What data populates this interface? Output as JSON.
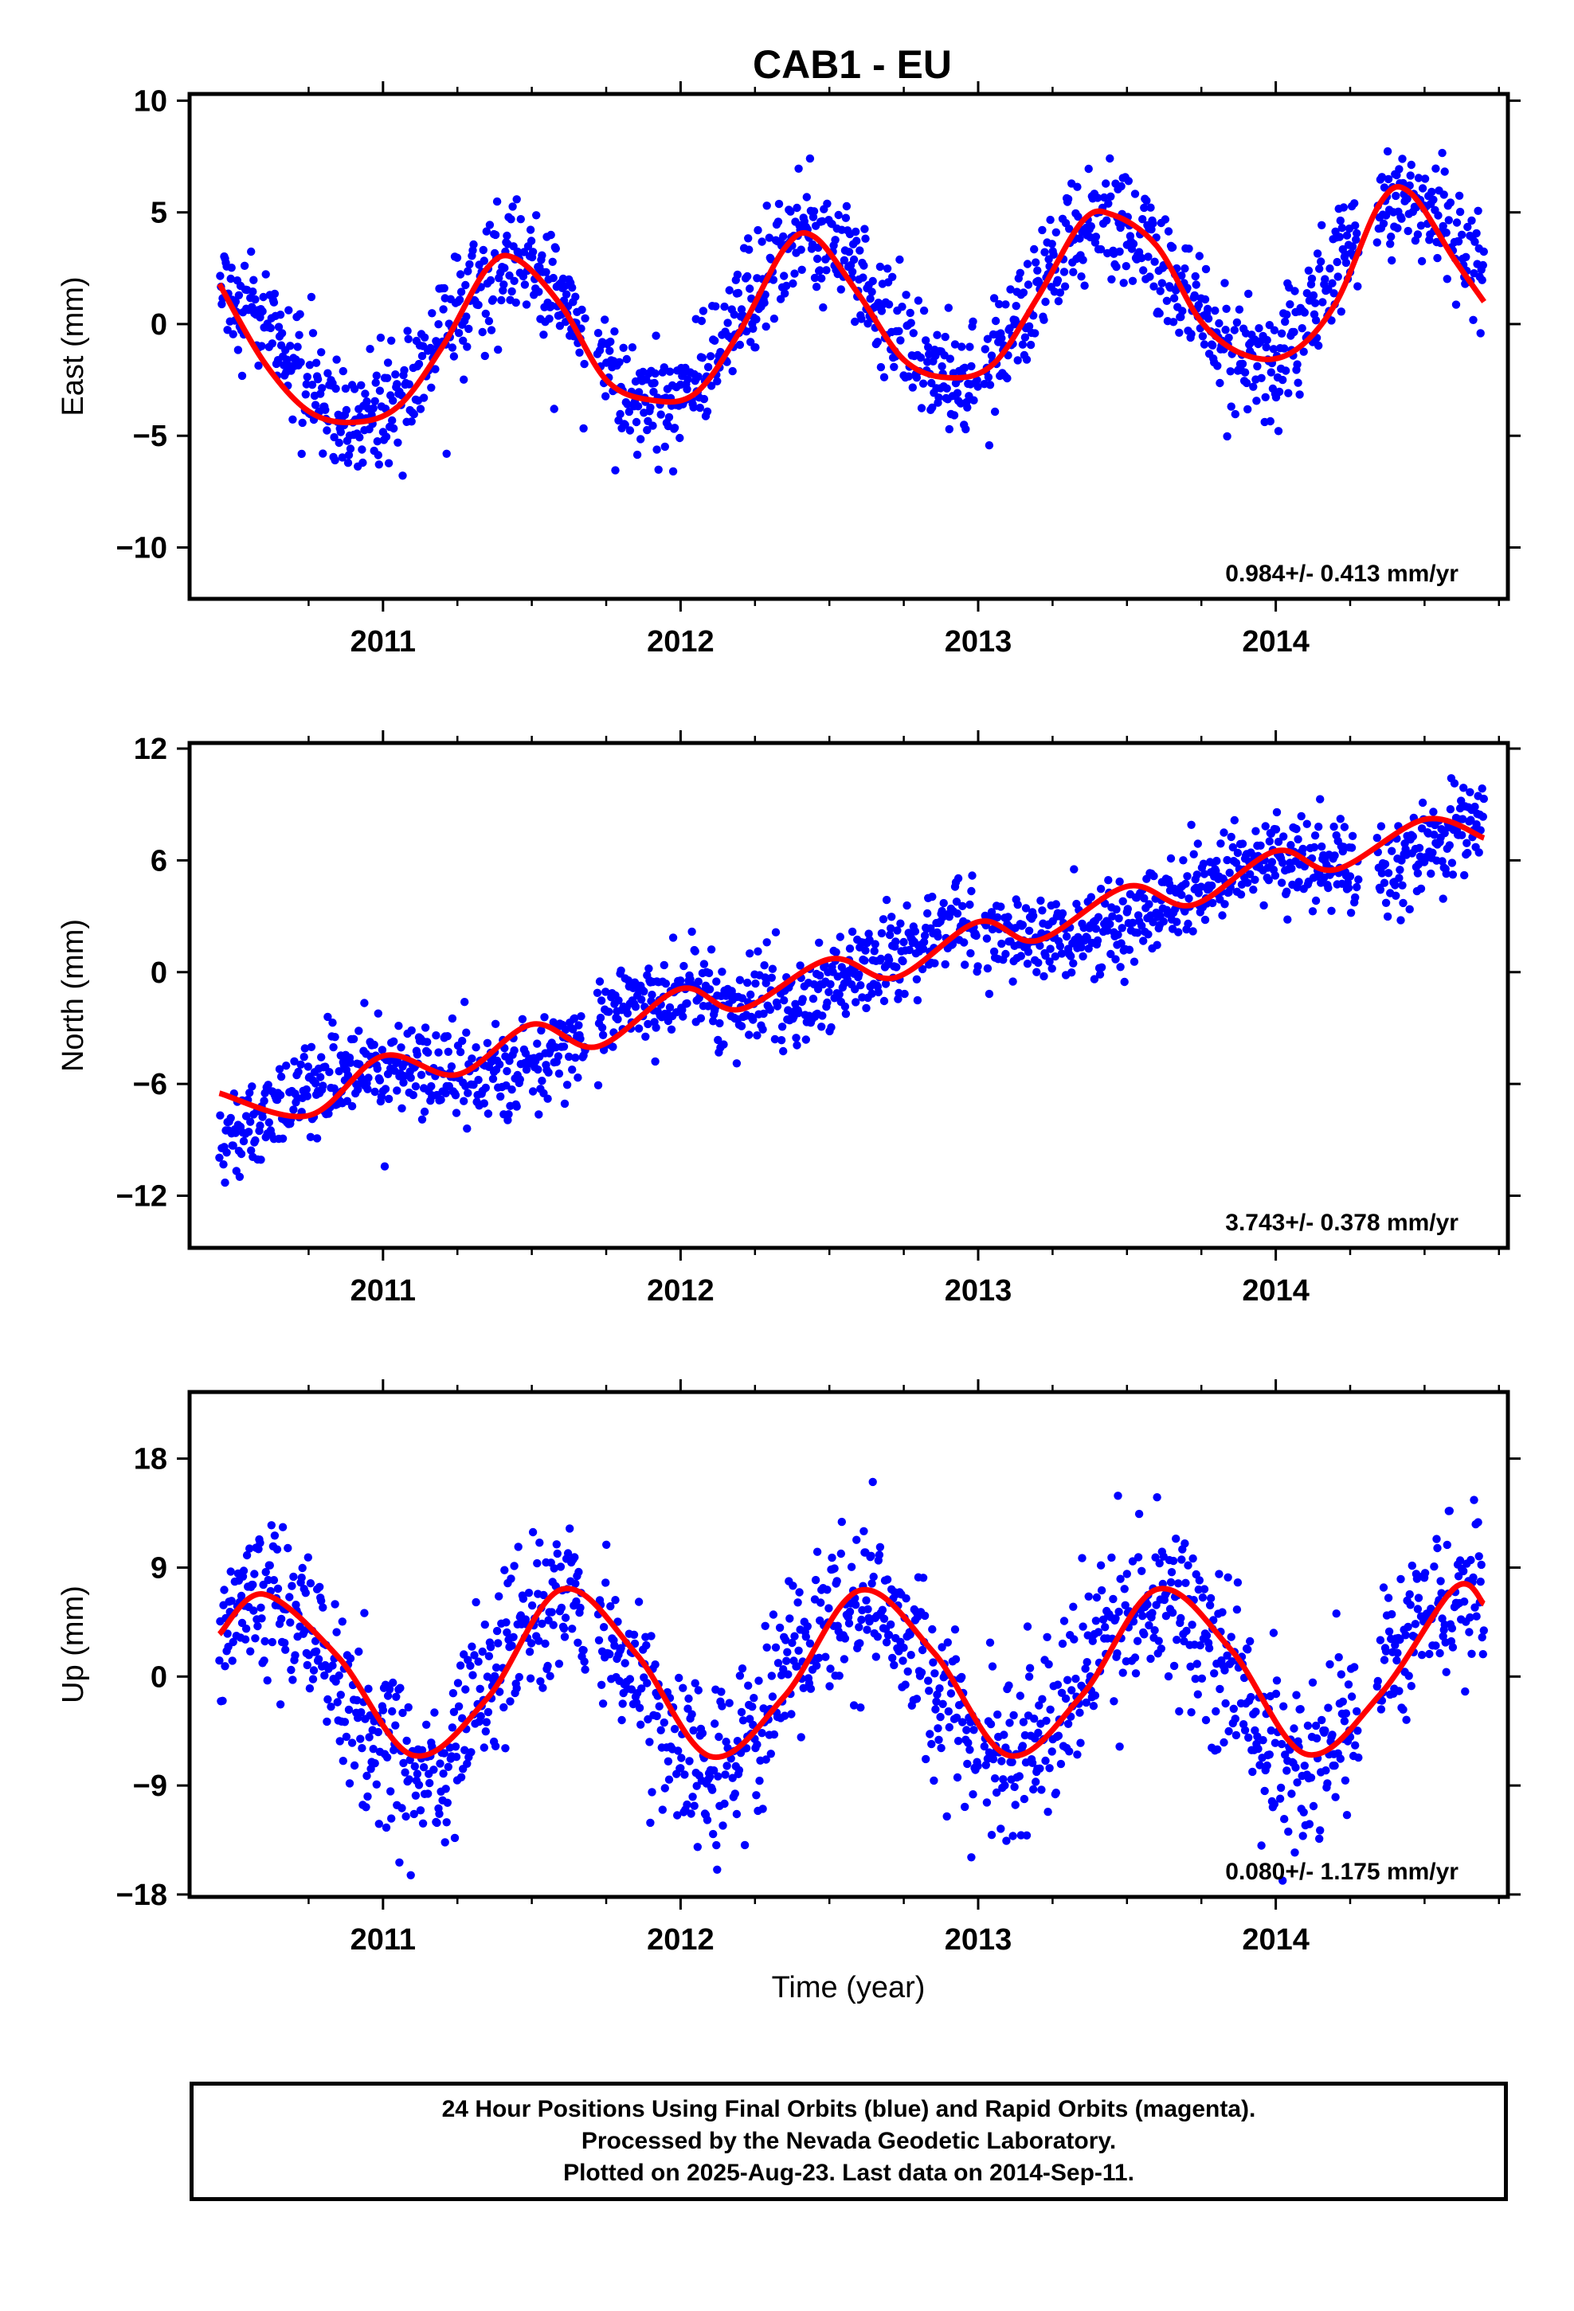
{
  "chart_data": {
    "type": "scatter",
    "title": "CAB1 - EU",
    "xlabel": "Time (year)",
    "xlim": [
      2010.35,
      2014.78
    ],
    "x_ticks": [
      "2011",
      "2012",
      "2013",
      "2014"
    ],
    "colors": {
      "points": "#0000ff",
      "fit": "#ff0000",
      "frame": "#000000"
    },
    "panels": [
      {
        "name": "east",
        "ylabel": "East (mm)",
        "ylim": [
          -12.3,
          10.3
        ],
        "y_ticks": [
          "10",
          "5",
          "0",
          "−5",
          "−10"
        ],
        "y_tick_values": [
          10,
          5,
          0,
          -5,
          -10
        ],
        "rate_label": "0.984+/- 0.413 mm/yr",
        "fit_model": {
          "t0": 2012.5,
          "offset": 0.3,
          "rate": 0.984,
          "amp": 3.4,
          "peak_phase": 0.43
        },
        "noise_sd": 1.3,
        "fit_x": [
          2010.45,
          2010.6,
          2010.75,
          2010.9,
          2011.05,
          2011.2,
          2011.35,
          2011.45,
          2011.6,
          2011.75,
          2011.9,
          2012.05,
          2012.2,
          2012.35,
          2012.45,
          2012.6,
          2012.75,
          2012.9,
          2013.05,
          2013.2,
          2013.35,
          2013.45,
          2013.6,
          2013.75,
          2013.9,
          2014.05,
          2014.2,
          2014.35,
          2014.45,
          2014.6,
          2014.7
        ],
        "fit_y": [
          1.8,
          -1.7,
          -3.9,
          -4.4,
          -3.7,
          -1.0,
          2.5,
          2.9,
          0.8,
          -2.5,
          -3.4,
          -3.1,
          -0.3,
          3.4,
          3.9,
          1.3,
          -1.6,
          -2.4,
          -1.8,
          1.2,
          4.6,
          4.9,
          3.5,
          0.1,
          -1.4,
          -1.3,
          0.9,
          5.4,
          5.9,
          2.9,
          1.0
        ]
      },
      {
        "name": "north",
        "ylabel": "North (mm)",
        "ylim": [
          -14.8,
          12.3
        ],
        "y_ticks": [
          "12",
          "6",
          "0",
          "−6",
          "−12"
        ],
        "y_tick_values": [
          12,
          6,
          0,
          -6,
          -12
        ],
        "rate_label": "3.743+/- 0.378 mm/yr",
        "fit_model": {
          "t0": 2012.5,
          "offset": -0.3,
          "rate": 3.743,
          "amp": 1.0,
          "peak_phase": 0.9
        },
        "noise_sd": 1.2,
        "fit_x": [
          2010.45,
          2010.75,
          2011.0,
          2011.25,
          2011.5,
          2011.72,
          2012.0,
          2012.2,
          2012.5,
          2012.72,
          2013.0,
          2013.2,
          2013.5,
          2013.72,
          2014.0,
          2014.2,
          2014.5,
          2014.7
        ],
        "fit_y": [
          -6.5,
          -7.7,
          -4.5,
          -5.5,
          -2.8,
          -4.0,
          -0.9,
          -2.0,
          0.7,
          -0.3,
          2.7,
          1.7,
          4.6,
          3.6,
          6.5,
          5.5,
          8.2,
          7.2
        ]
      },
      {
        "name": "up",
        "ylabel": "Up (mm)",
        "ylim": [
          -18.2,
          23.5
        ],
        "y_ticks": [
          "18",
          "9",
          "0",
          "−9",
          "−18"
        ],
        "y_tick_values": [
          18,
          9,
          0,
          -9,
          -18
        ],
        "rate_label": "0.080+/- 1.175 mm/yr",
        "fit_model": {
          "t0": 2012.5,
          "offset": -0.3,
          "rate": 0.08,
          "amp": 7.1,
          "peak_phase": 0.6
        },
        "noise_sd": 3.5,
        "fit_x": [
          2010.45,
          2010.6,
          2010.85,
          2011.1,
          2011.35,
          2011.6,
          2011.85,
          2012.1,
          2012.35,
          2012.6,
          2012.85,
          2013.1,
          2013.35,
          2013.6,
          2013.85,
          2014.1,
          2014.35,
          2014.6,
          2014.7
        ],
        "fit_y": [
          3.5,
          6.8,
          1.6,
          -6.5,
          -1.8,
          7.2,
          1.9,
          -6.6,
          -1.6,
          7.1,
          2.0,
          -6.5,
          -1.5,
          7.2,
          2.2,
          -6.4,
          -1.5,
          7.3,
          6.0
        ]
      }
    ]
  },
  "caption": {
    "line1": "24 Hour Positions Using Final Orbits (blue) and Rapid Orbits (magenta).",
    "line2": "Processed by the Nevada Geodetic Laboratory.",
    "line3": "Plotted on 2025-Aug-23. Last data on 2014-Sep-11."
  }
}
